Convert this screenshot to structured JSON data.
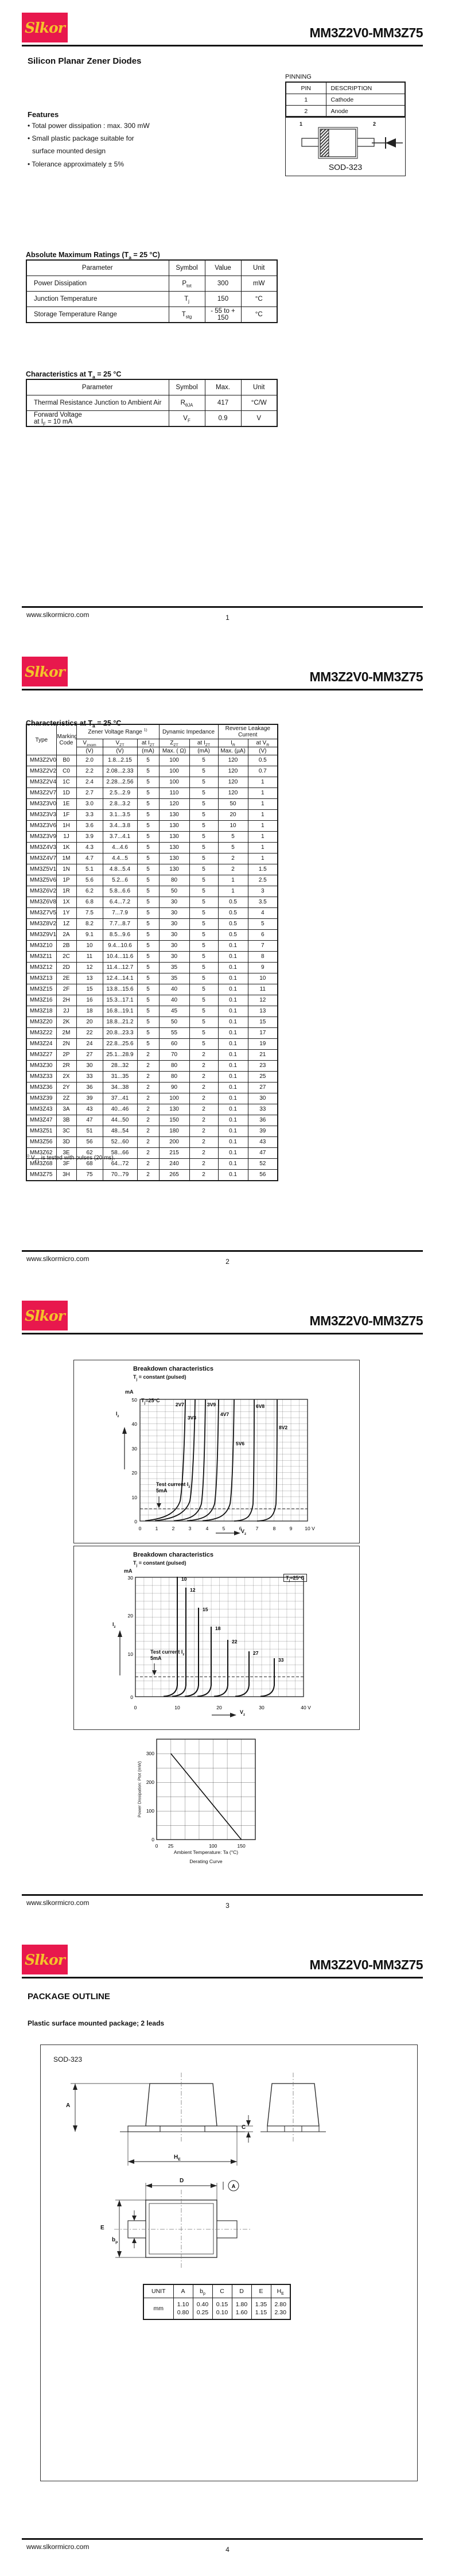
{
  "brand": "Slkor",
  "title": "MM3Z2V0-MM3Z75",
  "footer_url": "www.slkormicro.com",
  "colors": {
    "logo_bg": "#e8184d",
    "logo_text": "#f4c32a",
    "ink": "#111111"
  },
  "package_name": "SOD-323",
  "page1": {
    "page_num": "1",
    "subtitle": "Silicon Planar Zener Diodes",
    "pinning_label": "PINNING",
    "pinning": {
      "headers": [
        "PIN",
        "DESCRIPTION"
      ],
      "rows": [
        [
          "1",
          "Cathode"
        ],
        [
          "2",
          "Anode"
        ]
      ]
    },
    "pin1": "1",
    "pin2": "2",
    "features_heading": "Features",
    "features": [
      "• Total power dissipation : max. 300 mW",
      "• Small plastic package suitable for",
      "surface mounted design",
      "• Tolerance approximately ± 5%"
    ],
    "abs_heading": "Absolute Maximum Ratings (T~a~ = 25 °C)",
    "abs_table": {
      "headers": [
        "Parameter",
        "Symbol",
        "Value",
        "Unit"
      ],
      "rows": [
        [
          "Power Dissipation",
          "P~tot~",
          "300",
          "mW"
        ],
        [
          "Junction Temperature",
          "T~j~",
          "150",
          "°C"
        ],
        [
          "Storage Temperature Range",
          "T~stg~",
          "- 55 to + 150",
          "°C"
        ]
      ]
    },
    "char_heading": "Characteristics at T~a~ = 25 °C",
    "char_table": {
      "headers": [
        "Parameter",
        "Symbol",
        "Max.",
        "Unit"
      ],
      "rows": [
        [
          "Thermal Resistance Junction to Ambient Air",
          "R~θJA~",
          "417",
          "°C/W"
        ],
        [
          "Forward Voltage\nat I~F~ = 10 mA",
          "V~F~",
          "0.9",
          "V"
        ]
      ]
    }
  },
  "page2": {
    "page_num": "2",
    "heading": "Characteristics at T~a~ = 25 °C",
    "h_type": "Type",
    "h_marking": "Marking\nCode",
    "h_zener": "Zener Voltage Range ^1)^",
    "h_dyn": "Dynamic Impedance",
    "h_rev": "Reverse Leakage Current",
    "sym": [
      "V~znom~",
      "V~ZT~",
      "at I~ZT~",
      "Z~ZT~",
      "at I~ZT~",
      "I~R~",
      "at V~R~"
    ],
    "units": [
      "(V)",
      "(V)",
      "(mA)",
      "Max. ( Ω)",
      "(mA)",
      "Max. (µA)",
      "(V)"
    ],
    "rows": [
      [
        "MM3Z2V0",
        "B0",
        "2.0",
        "1.8...2.15",
        "5",
        "100",
        "5",
        "120",
        "0.5"
      ],
      [
        "MM3Z2V2",
        "C0",
        "2.2",
        "2.08...2.33",
        "5",
        "100",
        "5",
        "120",
        "0.7"
      ],
      [
        "MM3Z2V4",
        "1C",
        "2.4",
        "2.28...2.56",
        "5",
        "100",
        "5",
        "120",
        "1"
      ],
      [
        "MM3Z2V7",
        "1D",
        "2.7",
        "2.5...2.9",
        "5",
        "110",
        "5",
        "120",
        "1"
      ],
      [
        "MM3Z3V0",
        "1E",
        "3.0",
        "2.8...3.2",
        "5",
        "120",
        "5",
        "50",
        "1"
      ],
      [
        "MM3Z3V3",
        "1F",
        "3.3",
        "3.1...3.5",
        "5",
        "130",
        "5",
        "20",
        "1"
      ],
      [
        "MM3Z3V6",
        "1H",
        "3.6",
        "3.4...3.8",
        "5",
        "130",
        "5",
        "10",
        "1"
      ],
      [
        "MM3Z3V9",
        "1J",
        "3.9",
        "3.7...4.1",
        "5",
        "130",
        "5",
        "5",
        "1"
      ],
      [
        "MM3Z4V3",
        "1K",
        "4.3",
        "4...4.6",
        "5",
        "130",
        "5",
        "5",
        "1"
      ],
      [
        "MM3Z4V7",
        "1M",
        "4.7",
        "4.4...5",
        "5",
        "130",
        "5",
        "2",
        "1"
      ],
      [
        "MM3Z5V1",
        "1N",
        "5.1",
        "4.8...5.4",
        "5",
        "130",
        "5",
        "2",
        "1.5"
      ],
      [
        "MM3Z5V6",
        "1P",
        "5.6",
        "5.2...6",
        "5",
        "80",
        "5",
        "1",
        "2.5"
      ],
      [
        "MM3Z6V2",
        "1R",
        "6.2",
        "5.8...6.6",
        "5",
        "50",
        "5",
        "1",
        "3"
      ],
      [
        "MM3Z6V8",
        "1X",
        "6.8",
        "6.4...7.2",
        "5",
        "30",
        "5",
        "0.5",
        "3.5"
      ],
      [
        "MM3Z7V5",
        "1Y",
        "7.5",
        "7...7.9",
        "5",
        "30",
        "5",
        "0.5",
        "4"
      ],
      [
        "MM3Z8V2",
        "1Z",
        "8.2",
        "7.7...8.7",
        "5",
        "30",
        "5",
        "0.5",
        "5"
      ],
      [
        "MM3Z9V1",
        "2A",
        "9.1",
        "8.5...9.6",
        "5",
        "30",
        "5",
        "0.5",
        "6"
      ],
      [
        "MM3Z10",
        "2B",
        "10",
        "9.4...10.6",
        "5",
        "30",
        "5",
        "0.1",
        "7"
      ],
      [
        "MM3Z11",
        "2C",
        "11",
        "10.4...11.6",
        "5",
        "30",
        "5",
        "0.1",
        "8"
      ],
      [
        "MM3Z12",
        "2D",
        "12",
        "11.4...12.7",
        "5",
        "35",
        "5",
        "0.1",
        "9"
      ],
      [
        "MM3Z13",
        "2E",
        "13",
        "12.4...14.1",
        "5",
        "35",
        "5",
        "0.1",
        "10"
      ],
      [
        "MM3Z15",
        "2F",
        "15",
        "13.8...15.6",
        "5",
        "40",
        "5",
        "0.1",
        "11"
      ],
      [
        "MM3Z16",
        "2H",
        "16",
        "15.3...17.1",
        "5",
        "40",
        "5",
        "0.1",
        "12"
      ],
      [
        "MM3Z18",
        "2J",
        "18",
        "16.8...19.1",
        "5",
        "45",
        "5",
        "0.1",
        "13"
      ],
      [
        "MM3Z20",
        "2K",
        "20",
        "18.8...21.2",
        "5",
        "50",
        "5",
        "0.1",
        "15"
      ],
      [
        "MM3Z22",
        "2M",
        "22",
        "20.8...23.3",
        "5",
        "55",
        "5",
        "0.1",
        "17"
      ],
      [
        "MM3Z24",
        "2N",
        "24",
        "22.8...25.6",
        "5",
        "60",
        "5",
        "0.1",
        "19"
      ],
      [
        "MM3Z27",
        "2P",
        "27",
        "25.1...28.9",
        "2",
        "70",
        "2",
        "0.1",
        "21"
      ],
      [
        "MM3Z30",
        "2R",
        "30",
        "28...32",
        "2",
        "80",
        "2",
        "0.1",
        "23"
      ],
      [
        "MM3Z33",
        "2X",
        "33",
        "31...35",
        "2",
        "80",
        "2",
        "0.1",
        "25"
      ],
      [
        "MM3Z36",
        "2Y",
        "36",
        "34...38",
        "2",
        "90",
        "2",
        "0.1",
        "27"
      ],
      [
        "MM3Z39",
        "2Z",
        "39",
        "37...41",
        "2",
        "100",
        "2",
        "0.1",
        "30"
      ],
      [
        "MM3Z43",
        "3A",
        "43",
        "40...46",
        "2",
        "130",
        "2",
        "0.1",
        "33"
      ],
      [
        "MM3Z47",
        "3B",
        "47",
        "44...50",
        "2",
        "150",
        "2",
        "0.1",
        "36"
      ],
      [
        "MM3Z51",
        "3C",
        "51",
        "48...54",
        "2",
        "180",
        "2",
        "0.1",
        "39"
      ],
      [
        "MM3Z56",
        "3D",
        "56",
        "52...60",
        "2",
        "200",
        "2",
        "0.1",
        "43"
      ],
      [
        "MM3Z62",
        "3E",
        "62",
        "58...66",
        "2",
        "215",
        "2",
        "0.1",
        "47"
      ],
      [
        "MM3Z68",
        "3F",
        "68",
        "64...72",
        "2",
        "240",
        "2",
        "0.1",
        "52"
      ],
      [
        "MM3Z75",
        "3H",
        "75",
        "70...79",
        "2",
        "265",
        "2",
        "0.1",
        "56"
      ]
    ],
    "footnote": "^1)^ V~ZT~ is tested with pulses (20 ms)."
  },
  "page3": {
    "page_num": "3",
    "g1": {
      "title": "Breakdown characteristics",
      "subtitle": "T~j~ = constant (pulsed)",
      "y_unit": "mA",
      "yt": [
        "50",
        "40",
        "30",
        "20",
        "10",
        "0"
      ],
      "xt": [
        "0",
        "1",
        "2",
        "3",
        "4",
        "5",
        "6",
        "7",
        "8",
        "9",
        "10 V"
      ],
      "temp": "T~j~=25°C",
      "iz": "I~z~",
      "vz": "V~z~",
      "note1": "Test current I~z~",
      "note2": "5mA",
      "labels": [
        "2V7",
        "3V3",
        "3V9",
        "4V7",
        "5V6",
        "6V8",
        "8V2"
      ]
    },
    "g2": {
      "title": "Breakdown characteristics",
      "subtitle": "T~j~ = constant (pulsed)",
      "y_unit": "mA",
      "yt": [
        "30",
        "20",
        "10",
        "0"
      ],
      "xt": [
        "0",
        "10",
        "20",
        "30",
        "40 V"
      ],
      "temp": "T~j~=25°C",
      "iz": "I~z~",
      "vz": "V~z~",
      "note1": "Test current I~z~",
      "note2": "5mA",
      "labels": [
        "10",
        "12",
        "15",
        "18",
        "22",
        "27",
        "33"
      ]
    },
    "g3": {
      "ylabel": "Power Dissipation: Ptot (mW)",
      "xlabel": "Ambient Temperature: Ta (°C)",
      "caption": "Derating Curve",
      "yt": [
        "300",
        "200",
        "100",
        "0"
      ],
      "xt": [
        "0",
        "25",
        "100",
        "150"
      ]
    }
  },
  "page4": {
    "page_num": "4",
    "heading": "PACKAGE OUTLINE",
    "subheading": "Plastic surface mounted package; 2 leads",
    "dim_a": "A",
    "dim_bp": "b~p~",
    "dim_c": "C",
    "dim_d": "D",
    "dim_e": "E",
    "dim_he": "H~E~",
    "datum": "A",
    "dim_table": {
      "headers": [
        "UNIT",
        "A",
        "b~p~",
        "C",
        "D",
        "E",
        "H~E~"
      ],
      "rows": [
        [
          "mm",
          "1.10\n0.80",
          "0.40\n0.25",
          "0.15\n0.10",
          "1.80\n1.60",
          "1.35\n1.15",
          "2.80\n2.30"
        ]
      ]
    }
  },
  "chart_data": [
    {
      "type": "line",
      "title": "Breakdown characteristics",
      "subtitle": "Tj = constant (pulsed)",
      "xlabel": "Vz (V)",
      "ylabel": "Iz (mA)",
      "xlim": [
        0,
        10
      ],
      "ylim": [
        0,
        50
      ],
      "grid": true,
      "annotations": [
        "Tj=25°C",
        "Test current Iz 5mA"
      ],
      "test_current_mA": 5,
      "series": [
        {
          "name": "2V7",
          "breakdown_voltage": 2.7
        },
        {
          "name": "3V3",
          "breakdown_voltage": 3.3
        },
        {
          "name": "3V9",
          "breakdown_voltage": 3.9
        },
        {
          "name": "4V7",
          "breakdown_voltage": 4.7
        },
        {
          "name": "5V6",
          "breakdown_voltage": 5.6
        },
        {
          "name": "6V8",
          "breakdown_voltage": 6.8
        },
        {
          "name": "8V2",
          "breakdown_voltage": 8.2
        }
      ]
    },
    {
      "type": "line",
      "title": "Breakdown characteristics",
      "subtitle": "Tj = constant (pulsed)",
      "xlabel": "Vz (V)",
      "ylabel": "Iz (mA)",
      "xlim": [
        0,
        40
      ],
      "ylim": [
        0,
        30
      ],
      "grid": true,
      "annotations": [
        "Tj=25°C",
        "Test current Iz 5mA"
      ],
      "test_current_mA": 5,
      "series": [
        {
          "name": "10",
          "breakdown_voltage": 10
        },
        {
          "name": "12",
          "breakdown_voltage": 12
        },
        {
          "name": "15",
          "breakdown_voltage": 15
        },
        {
          "name": "18",
          "breakdown_voltage": 18
        },
        {
          "name": "22",
          "breakdown_voltage": 22
        },
        {
          "name": "27",
          "breakdown_voltage": 27
        },
        {
          "name": "33",
          "breakdown_voltage": 33
        }
      ]
    },
    {
      "type": "line",
      "title": "Derating Curve",
      "xlabel": "Ambient Temperature: Ta (°C)",
      "ylabel": "Power Dissipation: Ptot (mW)",
      "xlim": [
        0,
        175
      ],
      "ylim": [
        0,
        350
      ],
      "grid": true,
      "points": [
        [
          25,
          300
        ],
        [
          150,
          0
        ]
      ]
    }
  ]
}
